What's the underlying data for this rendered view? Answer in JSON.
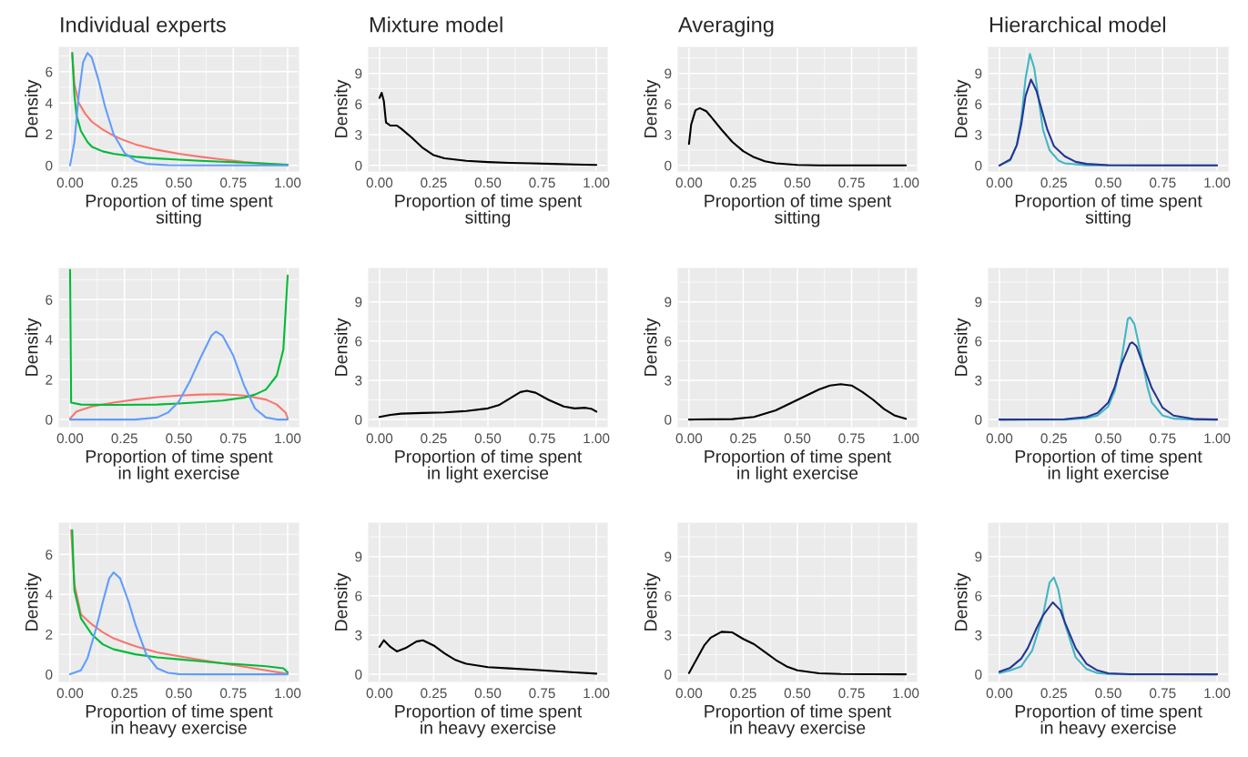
{
  "chart_data": [
    {
      "type": "line",
      "title": "Individual experts",
      "xlabel": "Proportion of time spent\nsitting",
      "ylabel": "Density",
      "xlim": [
        -0.05,
        1.05
      ],
      "ylim": [
        -0.36,
        7.56
      ],
      "xticks": [
        {
          "value": 0,
          "label": "0.00"
        },
        {
          "value": 0.25,
          "label": "0.25"
        },
        {
          "value": 0.5,
          "label": "0.50"
        },
        {
          "value": 0.75,
          "label": "0.75"
        },
        {
          "value": 1,
          "label": "1.00"
        }
      ],
      "yticks": [
        0,
        2,
        4,
        6
      ],
      "grid": true,
      "series": [
        {
          "color": "#F8766D",
          "x": [
            0.01,
            0.02,
            0.04,
            0.07,
            0.1,
            0.15,
            0.2,
            0.25,
            0.3,
            0.4,
            0.5,
            0.6,
            0.7,
            0.8,
            0.9,
            1.0
          ],
          "values": [
            7.2,
            5.2,
            4.0,
            3.3,
            2.8,
            2.3,
            1.9,
            1.6,
            1.35,
            1.0,
            0.75,
            0.55,
            0.38,
            0.22,
            0.1,
            0.02
          ]
        },
        {
          "color": "#00BA38",
          "x": [
            0.01,
            0.02,
            0.03,
            0.05,
            0.08,
            0.1,
            0.15,
            0.2,
            0.3,
            0.4,
            0.5,
            0.6,
            0.7,
            0.8,
            0.9,
            1.0
          ],
          "values": [
            7.2,
            4.5,
            3.2,
            2.2,
            1.5,
            1.2,
            0.9,
            0.75,
            0.55,
            0.45,
            0.37,
            0.3,
            0.24,
            0.18,
            0.12,
            0.05
          ]
        },
        {
          "color": "#619CFF",
          "x": [
            0,
            0.02,
            0.04,
            0.06,
            0.08,
            0.1,
            0.13,
            0.16,
            0.2,
            0.25,
            0.3,
            0.35,
            0.45,
            0.6,
            0.8,
            1.0
          ],
          "values": [
            0,
            1.5,
            4.5,
            6.6,
            7.2,
            6.9,
            5.5,
            3.8,
            2.0,
            0.8,
            0.3,
            0.1,
            0.02,
            0,
            0,
            0
          ]
        }
      ]
    },
    {
      "type": "line",
      "title": "Mixture model",
      "xlabel": "Proportion of time spent\nsitting",
      "ylabel": "Density",
      "xlim": [
        -0.05,
        1.05
      ],
      "ylim": [
        -0.55,
        11.55
      ],
      "xticks": [
        {
          "value": 0,
          "label": "0.00"
        },
        {
          "value": 0.25,
          "label": "0.25"
        },
        {
          "value": 0.5,
          "label": "0.50"
        },
        {
          "value": 0.75,
          "label": "0.75"
        },
        {
          "value": 1,
          "label": "1.00"
        }
      ],
      "yticks": [
        0,
        3,
        6,
        9
      ],
      "grid": true,
      "series": [
        {
          "color": "#000000",
          "x": [
            0,
            0.01,
            0.02,
            0.03,
            0.05,
            0.08,
            0.1,
            0.15,
            0.2,
            0.25,
            0.3,
            0.4,
            0.5,
            0.6,
            0.7,
            0.8,
            0.9,
            1.0
          ],
          "values": [
            6.6,
            7.1,
            6.3,
            4.2,
            3.9,
            3.9,
            3.6,
            2.7,
            1.7,
            1.0,
            0.7,
            0.45,
            0.33,
            0.25,
            0.2,
            0.15,
            0.1,
            0.05
          ]
        }
      ]
    },
    {
      "type": "line",
      "title": "Averaging",
      "xlabel": "Proportion of time spent\nsitting",
      "ylabel": "Density",
      "xlim": [
        -0.05,
        1.05
      ],
      "ylim": [
        -0.55,
        11.55
      ],
      "xticks": [
        {
          "value": 0,
          "label": "0.00"
        },
        {
          "value": 0.25,
          "label": "0.25"
        },
        {
          "value": 0.5,
          "label": "0.50"
        },
        {
          "value": 0.75,
          "label": "0.75"
        },
        {
          "value": 1,
          "label": "1.00"
        }
      ],
      "yticks": [
        0,
        3,
        6,
        9
      ],
      "grid": true,
      "series": [
        {
          "color": "#000000",
          "x": [
            0,
            0.01,
            0.03,
            0.05,
            0.08,
            0.1,
            0.15,
            0.2,
            0.25,
            0.3,
            0.35,
            0.4,
            0.5,
            0.6,
            0.8,
            1.0
          ],
          "values": [
            2.1,
            4.0,
            5.4,
            5.6,
            5.3,
            4.8,
            3.5,
            2.3,
            1.4,
            0.8,
            0.4,
            0.2,
            0.05,
            0.01,
            0,
            0
          ]
        }
      ]
    },
    {
      "type": "line",
      "title": "Hierarchical model",
      "xlabel": "Proportion of time spent\nsitting",
      "ylabel": "Density",
      "xlim": [
        -0.05,
        1.05
      ],
      "ylim": [
        -0.55,
        11.55
      ],
      "xticks": [
        {
          "value": 0,
          "label": "0.00"
        },
        {
          "value": 0.25,
          "label": "0.25"
        },
        {
          "value": 0.5,
          "label": "0.50"
        },
        {
          "value": 0.75,
          "label": "0.75"
        },
        {
          "value": 1,
          "label": "1.00"
        }
      ],
      "yticks": [
        0,
        3,
        6,
        9
      ],
      "grid": true,
      "series": [
        {
          "color": "#41B6C4",
          "x": [
            0,
            0.05,
            0.08,
            0.1,
            0.12,
            0.14,
            0.16,
            0.18,
            0.2,
            0.23,
            0.27,
            0.3,
            0.4,
            0.6,
            1.0
          ],
          "values": [
            0,
            0.5,
            2.0,
            4.5,
            8.5,
            10.9,
            9.5,
            6.5,
            3.5,
            1.5,
            0.5,
            0.2,
            0.02,
            0,
            0
          ]
        },
        {
          "color": "#253494",
          "x": [
            0,
            0.05,
            0.08,
            0.1,
            0.12,
            0.145,
            0.17,
            0.2,
            0.22,
            0.25,
            0.3,
            0.35,
            0.4,
            0.5,
            0.7,
            1.0
          ],
          "values": [
            0,
            0.6,
            2.0,
            4.0,
            6.8,
            8.4,
            7.3,
            5.0,
            3.5,
            1.9,
            0.9,
            0.35,
            0.15,
            0.03,
            0,
            0
          ]
        }
      ]
    },
    {
      "type": "line",
      "xlabel": "Proportion of time spent\nin light exercise",
      "ylabel": "Density",
      "xlim": [
        -0.05,
        1.05
      ],
      "ylim": [
        -0.36,
        7.56
      ],
      "xticks": [
        {
          "value": 0,
          "label": "0.00"
        },
        {
          "value": 0.25,
          "label": "0.25"
        },
        {
          "value": 0.5,
          "label": "0.50"
        },
        {
          "value": 0.75,
          "label": "0.75"
        },
        {
          "value": 1,
          "label": "1.00"
        }
      ],
      "yticks": [
        0,
        2,
        4,
        6
      ],
      "grid": true,
      "series": [
        {
          "color": "#F8766D",
          "x": [
            0,
            0.03,
            0.1,
            0.2,
            0.3,
            0.4,
            0.5,
            0.6,
            0.7,
            0.8,
            0.9,
            0.95,
            0.99,
            1.0
          ],
          "values": [
            0.05,
            0.4,
            0.65,
            0.85,
            1.0,
            1.12,
            1.2,
            1.25,
            1.27,
            1.2,
            1.0,
            0.75,
            0.35,
            0.05
          ]
        },
        {
          "color": "#00BA38",
          "x": [
            0,
            0.005,
            0.05,
            0.2,
            0.4,
            0.5,
            0.6,
            0.7,
            0.8,
            0.85,
            0.9,
            0.95,
            0.98,
            1.0
          ],
          "values": [
            7.5,
            0.85,
            0.75,
            0.73,
            0.75,
            0.8,
            0.87,
            0.95,
            1.1,
            1.25,
            1.5,
            2.2,
            3.5,
            7.2
          ]
        },
        {
          "color": "#619CFF",
          "x": [
            0,
            0.3,
            0.4,
            0.45,
            0.5,
            0.55,
            0.6,
            0.65,
            0.67,
            0.7,
            0.75,
            0.8,
            0.85,
            0.9,
            0.95,
            1.0
          ],
          "values": [
            0,
            0,
            0.1,
            0.35,
            0.9,
            1.9,
            3.1,
            4.2,
            4.4,
            4.2,
            3.2,
            1.7,
            0.55,
            0.1,
            0,
            0
          ]
        }
      ]
    },
    {
      "type": "line",
      "xlabel": "Proportion of time spent\nin light exercise",
      "ylabel": "Density",
      "xlim": [
        -0.05,
        1.05
      ],
      "ylim": [
        -0.55,
        11.55
      ],
      "xticks": [
        {
          "value": 0,
          "label": "0.00"
        },
        {
          "value": 0.25,
          "label": "0.25"
        },
        {
          "value": 0.5,
          "label": "0.50"
        },
        {
          "value": 0.75,
          "label": "0.75"
        },
        {
          "value": 1,
          "label": "1.00"
        }
      ],
      "yticks": [
        0,
        3,
        6,
        9
      ],
      "grid": true,
      "series": [
        {
          "color": "#000000",
          "x": [
            0,
            0.05,
            0.1,
            0.2,
            0.3,
            0.4,
            0.5,
            0.55,
            0.6,
            0.65,
            0.68,
            0.72,
            0.78,
            0.85,
            0.9,
            0.95,
            0.98,
            1.0
          ],
          "values": [
            0.2,
            0.35,
            0.45,
            0.5,
            0.55,
            0.65,
            0.85,
            1.1,
            1.6,
            2.1,
            2.2,
            2.05,
            1.5,
            1.0,
            0.85,
            0.9,
            0.8,
            0.6
          ]
        }
      ]
    },
    {
      "type": "line",
      "xlabel": "Proportion of time spent\nin light exercise",
      "ylabel": "Density",
      "xlim": [
        -0.05,
        1.05
      ],
      "ylim": [
        -0.55,
        11.55
      ],
      "xticks": [
        {
          "value": 0,
          "label": "0.00"
        },
        {
          "value": 0.25,
          "label": "0.25"
        },
        {
          "value": 0.5,
          "label": "0.50"
        },
        {
          "value": 0.75,
          "label": "0.75"
        },
        {
          "value": 1,
          "label": "1.00"
        }
      ],
      "yticks": [
        0,
        3,
        6,
        9
      ],
      "grid": true,
      "series": [
        {
          "color": "#000000",
          "x": [
            0,
            0.2,
            0.3,
            0.4,
            0.5,
            0.6,
            0.65,
            0.7,
            0.75,
            0.8,
            0.85,
            0.9,
            0.95,
            1.0
          ],
          "values": [
            0,
            0.03,
            0.2,
            0.7,
            1.5,
            2.3,
            2.6,
            2.7,
            2.6,
            2.1,
            1.5,
            0.8,
            0.3,
            0.05
          ]
        }
      ]
    },
    {
      "type": "line",
      "xlabel": "Proportion of time spent\nin light exercise",
      "ylabel": "Density",
      "xlim": [
        -0.05,
        1.05
      ],
      "ylim": [
        -0.55,
        11.55
      ],
      "xticks": [
        {
          "value": 0,
          "label": "0.00"
        },
        {
          "value": 0.25,
          "label": "0.25"
        },
        {
          "value": 0.5,
          "label": "0.50"
        },
        {
          "value": 0.75,
          "label": "0.75"
        },
        {
          "value": 1,
          "label": "1.00"
        }
      ],
      "yticks": [
        0,
        3,
        6,
        9
      ],
      "grid": true,
      "series": [
        {
          "color": "#41B6C4",
          "x": [
            0,
            0.3,
            0.4,
            0.45,
            0.5,
            0.53,
            0.56,
            0.59,
            0.6,
            0.62,
            0.65,
            0.68,
            0.7,
            0.75,
            0.8,
            0.9,
            1.0
          ],
          "values": [
            0,
            0,
            0.1,
            0.3,
            1.0,
            2.2,
            4.5,
            7.7,
            7.8,
            7.3,
            5.0,
            2.5,
            1.3,
            0.3,
            0.07,
            0,
            0
          ]
        },
        {
          "color": "#253494",
          "x": [
            0,
            0.3,
            0.4,
            0.45,
            0.5,
            0.53,
            0.56,
            0.6,
            0.61,
            0.63,
            0.66,
            0.7,
            0.75,
            0.8,
            0.9,
            1.0
          ],
          "values": [
            0,
            0.02,
            0.2,
            0.5,
            1.3,
            2.5,
            4.2,
            5.8,
            5.9,
            5.6,
            4.2,
            2.4,
            0.9,
            0.3,
            0.03,
            0
          ]
        }
      ]
    },
    {
      "type": "line",
      "xlabel": "Proportion of time spent\nin heavy exercise",
      "ylabel": "Density",
      "xlim": [
        -0.05,
        1.05
      ],
      "ylim": [
        -0.36,
        7.56
      ],
      "xticks": [
        {
          "value": 0,
          "label": "0.00"
        },
        {
          "value": 0.25,
          "label": "0.25"
        },
        {
          "value": 0.5,
          "label": "0.50"
        },
        {
          "value": 0.75,
          "label": "0.75"
        },
        {
          "value": 1,
          "label": "1.00"
        }
      ],
      "yticks": [
        0,
        2,
        4,
        6
      ],
      "grid": true,
      "series": [
        {
          "color": "#F8766D",
          "x": [
            0.005,
            0.02,
            0.05,
            0.1,
            0.15,
            0.2,
            0.25,
            0.3,
            0.4,
            0.5,
            0.6,
            0.7,
            0.8,
            0.9,
            1.0
          ],
          "values": [
            7.2,
            4.5,
            3.0,
            2.5,
            2.1,
            1.8,
            1.6,
            1.4,
            1.1,
            0.9,
            0.72,
            0.55,
            0.38,
            0.2,
            0.02
          ]
        },
        {
          "color": "#00BA38",
          "x": [
            0.01,
            0.02,
            0.05,
            0.1,
            0.15,
            0.2,
            0.3,
            0.4,
            0.5,
            0.6,
            0.7,
            0.8,
            0.9,
            0.98,
            1.0
          ],
          "values": [
            7.2,
            4.2,
            2.8,
            2.0,
            1.5,
            1.25,
            1.0,
            0.85,
            0.75,
            0.65,
            0.55,
            0.48,
            0.4,
            0.3,
            0.1
          ]
        },
        {
          "color": "#619CFF",
          "x": [
            0,
            0.05,
            0.08,
            0.12,
            0.15,
            0.18,
            0.2,
            0.23,
            0.27,
            0.3,
            0.35,
            0.4,
            0.45,
            0.5,
            0.6,
            1.0
          ],
          "values": [
            0,
            0.2,
            0.8,
            2.3,
            3.6,
            4.8,
            5.1,
            4.8,
            3.6,
            2.5,
            1.0,
            0.3,
            0.07,
            0.01,
            0,
            0
          ]
        }
      ]
    },
    {
      "type": "line",
      "xlabel": "Proportion of time spent\nin heavy exercise",
      "ylabel": "Density",
      "xlim": [
        -0.05,
        1.05
      ],
      "ylim": [
        -0.55,
        11.55
      ],
      "xticks": [
        {
          "value": 0,
          "label": "0.00"
        },
        {
          "value": 0.25,
          "label": "0.25"
        },
        {
          "value": 0.5,
          "label": "0.50"
        },
        {
          "value": 0.75,
          "label": "0.75"
        },
        {
          "value": 1,
          "label": "1.00"
        }
      ],
      "yticks": [
        0,
        3,
        6,
        9
      ],
      "grid": true,
      "series": [
        {
          "color": "#000000",
          "x": [
            0,
            0.02,
            0.05,
            0.08,
            0.12,
            0.17,
            0.2,
            0.25,
            0.3,
            0.35,
            0.4,
            0.5,
            0.6,
            0.7,
            0.8,
            0.9,
            1.0
          ],
          "values": [
            2.1,
            2.6,
            2.1,
            1.75,
            2.0,
            2.5,
            2.6,
            2.2,
            1.6,
            1.1,
            0.8,
            0.55,
            0.45,
            0.35,
            0.25,
            0.15,
            0.05
          ]
        }
      ]
    },
    {
      "type": "line",
      "xlabel": "Proportion of time spent\nin heavy exercise",
      "ylabel": "Density",
      "xlim": [
        -0.05,
        1.05
      ],
      "ylim": [
        -0.55,
        11.55
      ],
      "xticks": [
        {
          "value": 0,
          "label": "0.00"
        },
        {
          "value": 0.25,
          "label": "0.25"
        },
        {
          "value": 0.5,
          "label": "0.50"
        },
        {
          "value": 0.75,
          "label": "0.75"
        },
        {
          "value": 1,
          "label": "1.00"
        }
      ],
      "yticks": [
        0,
        3,
        6,
        9
      ],
      "grid": true,
      "series": [
        {
          "color": "#000000",
          "x": [
            0,
            0.03,
            0.07,
            0.1,
            0.15,
            0.2,
            0.25,
            0.3,
            0.35,
            0.4,
            0.45,
            0.5,
            0.6,
            0.7,
            1.0
          ],
          "values": [
            0.1,
            1.0,
            2.2,
            2.8,
            3.25,
            3.2,
            2.7,
            2.3,
            1.7,
            1.1,
            0.6,
            0.3,
            0.08,
            0.02,
            0
          ]
        }
      ]
    },
    {
      "type": "line",
      "xlabel": "Proportion of time spent\nin heavy exercise",
      "ylabel": "Density",
      "xlim": [
        -0.05,
        1.05
      ],
      "ylim": [
        -0.55,
        11.55
      ],
      "xticks": [
        {
          "value": 0,
          "label": "0.00"
        },
        {
          "value": 0.25,
          "label": "0.25"
        },
        {
          "value": 0.5,
          "label": "0.50"
        },
        {
          "value": 0.75,
          "label": "0.75"
        },
        {
          "value": 1,
          "label": "1.00"
        }
      ],
      "yticks": [
        0,
        3,
        6,
        9
      ],
      "grid": true,
      "series": [
        {
          "color": "#41B6C4",
          "x": [
            0,
            0.05,
            0.1,
            0.15,
            0.2,
            0.23,
            0.25,
            0.27,
            0.3,
            0.35,
            0.4,
            0.45,
            0.5,
            0.6,
            1.0
          ],
          "values": [
            0.1,
            0.3,
            0.6,
            1.8,
            4.5,
            7.0,
            7.4,
            6.5,
            3.9,
            1.3,
            0.4,
            0.1,
            0.02,
            0,
            0
          ]
        },
        {
          "color": "#253494",
          "x": [
            0,
            0.05,
            0.1,
            0.13,
            0.17,
            0.2,
            0.245,
            0.28,
            0.3,
            0.35,
            0.4,
            0.45,
            0.5,
            0.6,
            1.0
          ],
          "values": [
            0.2,
            0.5,
            1.2,
            2.0,
            3.5,
            4.5,
            5.5,
            4.9,
            4.0,
            2.0,
            0.8,
            0.3,
            0.08,
            0.01,
            0
          ]
        }
      ]
    }
  ]
}
